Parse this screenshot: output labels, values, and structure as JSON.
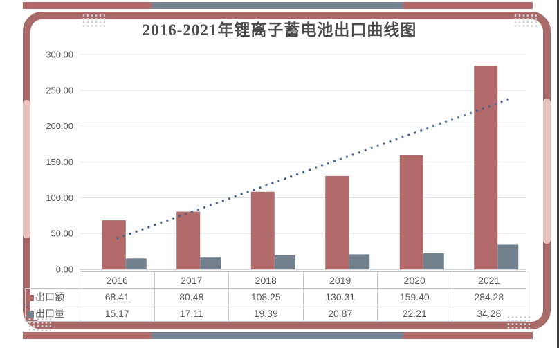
{
  "title": "2016-2021年锂离子蓄电池出口曲线图",
  "chart_data": {
    "type": "bar",
    "title": "2016-2021年锂离子蓄电池出口曲线图",
    "categories": [
      "2016",
      "2017",
      "2018",
      "2019",
      "2020",
      "2021"
    ],
    "series": [
      {
        "name": "出口额",
        "color": "#b26a6a",
        "values": [
          68.41,
          80.48,
          108.25,
          130.31,
          159.4,
          284.28
        ]
      },
      {
        "name": "出口量",
        "color": "#73818f",
        "values": [
          15.17,
          17.11,
          19.39,
          20.87,
          22.21,
          34.28
        ]
      }
    ],
    "trendline": {
      "applies_to": "出口额",
      "type": "linear",
      "style": "dotted",
      "color": "#46648c",
      "start_value": 43,
      "end_value": 239
    },
    "ylim": [
      0,
      300
    ],
    "ytick_step": 50,
    "ytick_labels": [
      "0.00",
      "50.00",
      "100.00",
      "150.00",
      "200.00",
      "250.00",
      "300.00"
    ],
    "grid": true,
    "legend_position": "table rows left of data table"
  },
  "decorations": {
    "accent_red": "#b26a6a",
    "accent_gray": "#75818f",
    "frame_dark": "#a86969",
    "frame_light": "#e8c3bf",
    "gridline_color": "#dcdfe3",
    "axis_color": "#a8b2bd",
    "text_color": "#595959"
  }
}
